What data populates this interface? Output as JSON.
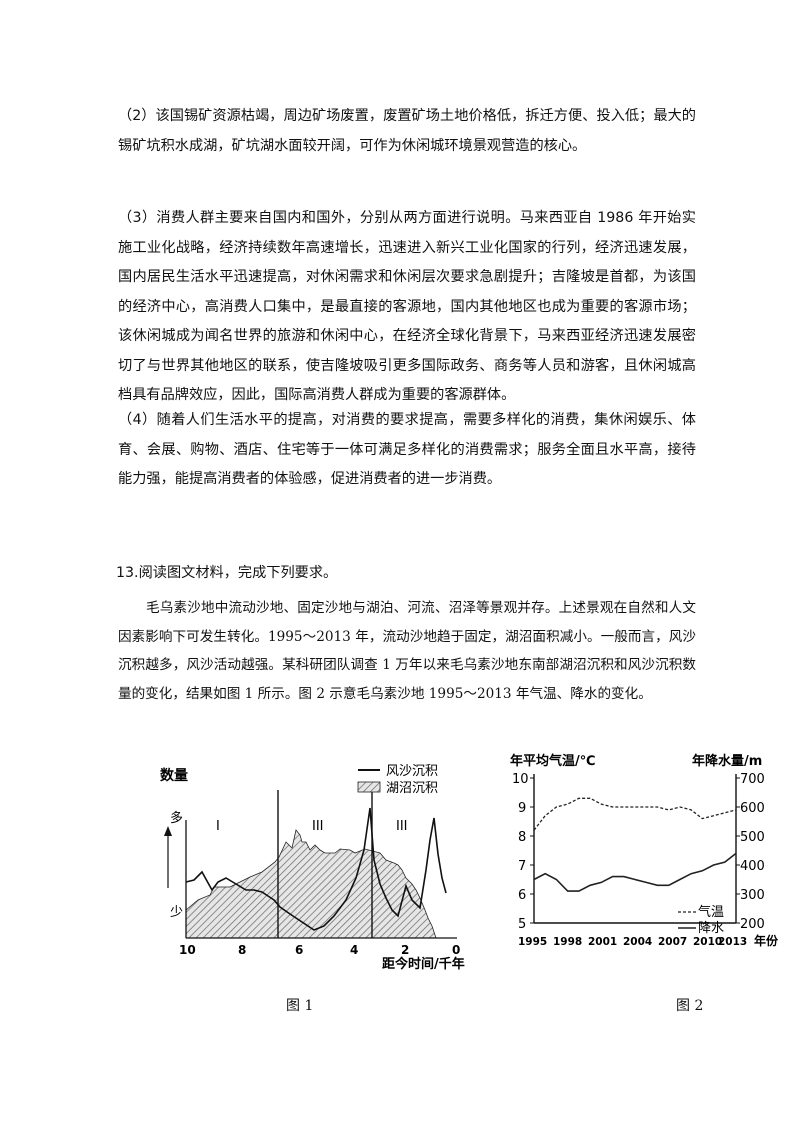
{
  "paragraphs": {
    "p2": "（2）该国锡矿资源枯竭，周边矿场废置，废置矿场土地价格低，拆迁方便、投入低；最大的锡矿坑积水成湖，矿坑湖水面较开阔，可作为休闲城环境景观营造的核心。",
    "p3": "（3）消费人群主要来自国内和国外，分别从两方面进行说明。马来西亚自 1986 年开始实施工业化战略，经济持续数年高速增长，迅速进入新兴工业化国家的行列，经济迅速发展，国内居民生活水平迅速提高，对休闲需求和休闲层次要求急剧提升；吉隆坡是首都，为该国的经济中心，高消费人口集中，是最直接的客源地，国内其他地区也成为重要的客源市场；该休闲城成为闻名世界的旅游和休闲中心，在经济全球化背景下，马来西亚经济迅速发展密切了与世界其他地区的联系，使吉隆坡吸引更多国际政务、商务等人员和游客，且休闲城高档具有品牌效应，因此，国际高消费人群成为重要的客源群体。",
    "p4": "（4）随着人们生活水平的提高，对消费的要求提高，需要多样化的消费，集休闲娱乐、体育、会展、购物、酒店、住宅等于一体可满足多样化的消费需求；服务全面且水平高，接待能力强，能提高消费者的体验感，促进消费者的进一步消费。"
  },
  "question": {
    "heading": "13.阅读图文材料，完成下列要求。",
    "material": "毛乌素沙地中流动沙地、固定沙地与湖泊、河流、沼泽等景观并存。上述景观在自然和人文因素影响下可发生转化。1995～2013 年，流动沙地趋于固定，湖沼面积减小。一般而言，风沙沉积越多，风沙活动越强。某科研团队调查 1 万年以来毛乌素沙地东南部湖沼沉积和风沙沉积数量的变化，结果如图 1 所示。图 2 示意毛乌素沙地 1995～2013 年气温、降水的变化。"
  },
  "fig1": {
    "caption": "图 1",
    "ylabel": "数量",
    "y_high": "多",
    "y_low": "少",
    "xlabel": "距今时间/千年",
    "legend": [
      "风沙沉积",
      "湖沼沉积"
    ],
    "periods": [
      "I",
      "III",
      "III"
    ],
    "x_ticks": [
      "10",
      "8",
      "6",
      "4",
      "2",
      "0"
    ],
    "chart_data": {
      "type": "area",
      "x_reversed": true,
      "xlim": [
        10,
        0
      ],
      "series": [
        {
          "name": "风沙沉积",
          "x": [
            10,
            9.6,
            9.2,
            8.8,
            8.4,
            8.0,
            7.4,
            6.8,
            6.2,
            5.6,
            5.0,
            4.5,
            4.0,
            3.6,
            3.3,
            3.1,
            2.8,
            2.5,
            2.1,
            1.7,
            1.3,
            0.9,
            0.7
          ],
          "level": [
            "low-mid",
            "mid",
            "mid",
            "mid",
            "mid",
            "mid",
            "low-mid",
            "mid",
            "mid",
            "low",
            "low",
            "low-mid",
            "mid-high",
            "high",
            "low-mid",
            "mid",
            "mid",
            "low",
            "low",
            "mid",
            "mid",
            "high",
            "mid"
          ]
        },
        {
          "name": "湖沼沉积",
          "x": [
            10,
            6.5,
            6.0,
            4.5,
            3.3,
            2.5,
            1.5,
            1.0
          ],
          "level": [
            "low",
            "mid",
            "high",
            "high",
            "high",
            "mid",
            "low",
            "low"
          ]
        }
      ]
    }
  },
  "fig2": {
    "caption": "图 2",
    "ylabel_left": "年平均气温/℃",
    "ylabel_right": "年降水量/m",
    "xlabel": "年份",
    "left_ticks": [
      "10",
      "9",
      "8",
      "7",
      "6",
      "5"
    ],
    "right_ticks": [
      "700",
      "600",
      "500",
      "400",
      "300",
      "200"
    ],
    "x_ticks": [
      "1995",
      "1998",
      "2001",
      "2004",
      "2007",
      "2010",
      "2013"
    ],
    "legend": [
      "气温",
      "降水"
    ],
    "chart_data": {
      "type": "line",
      "x": [
        1995,
        1996,
        1997,
        1998,
        1999,
        2000,
        2001,
        2002,
        2003,
        2004,
        2005,
        2006,
        2007,
        2008,
        2009,
        2010,
        2011,
        2012,
        2013
      ],
      "ylim_left": [
        5,
        10
      ],
      "ylim_right": [
        200,
        700
      ],
      "series": [
        {
          "name": "气温",
          "axis": "left",
          "style": "dashed",
          "values": [
            8.2,
            8.7,
            9.0,
            9.1,
            9.3,
            9.3,
            9.1,
            9.0,
            9.0,
            9.0,
            9.0,
            9.0,
            8.9,
            9.0,
            8.9,
            8.6,
            8.7,
            8.8,
            8.9
          ]
        },
        {
          "name": "降水",
          "axis": "right",
          "style": "solid",
          "values": [
            6.5,
            6.7,
            6.5,
            6.1,
            6.1,
            6.3,
            6.4,
            6.6,
            6.6,
            6.5,
            6.4,
            6.3,
            6.3,
            6.5,
            6.7,
            6.8,
            7.0,
            7.1,
            7.4
          ]
        }
      ]
    }
  }
}
